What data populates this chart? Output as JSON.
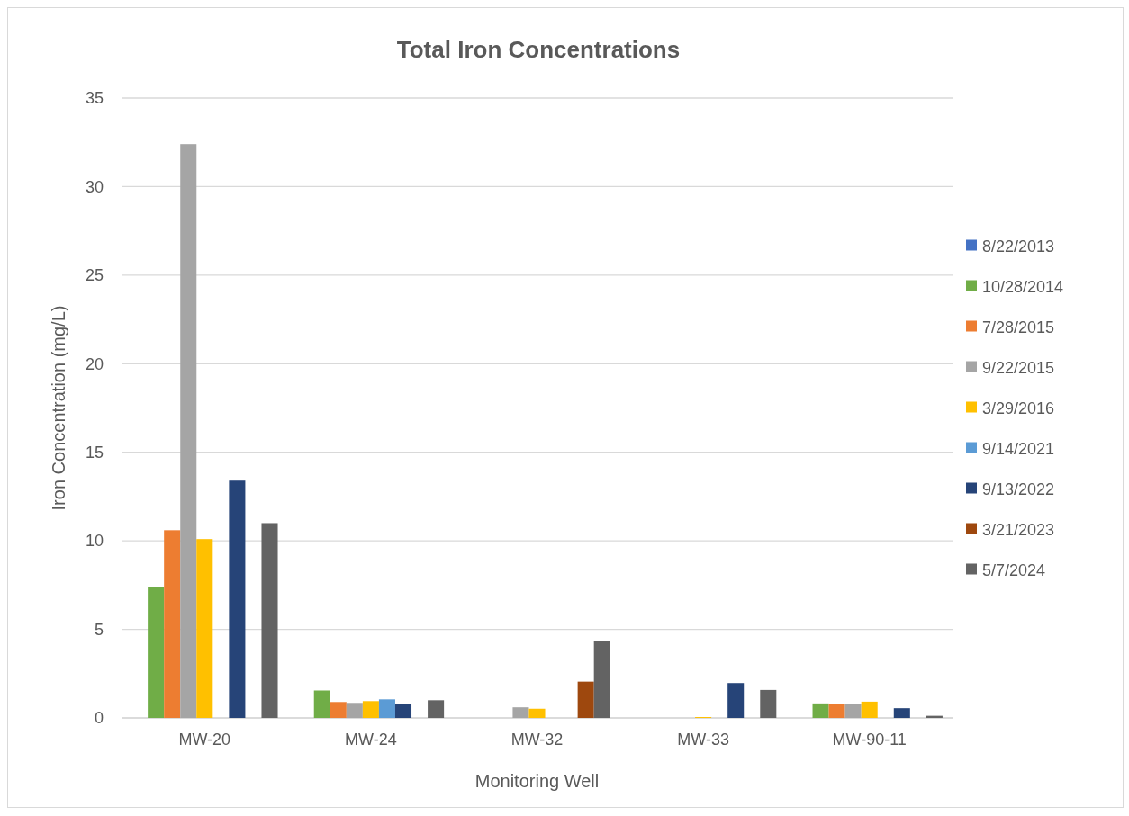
{
  "chart_data": {
    "type": "bar",
    "title": "Total Iron Concentrations",
    "xlabel": "Monitoring Well",
    "ylabel": "Iron Concentration (mg/L)",
    "categories": [
      "MW-20",
      "MW-24",
      "MW-32",
      "MW-33",
      "MW-90-11"
    ],
    "series": [
      {
        "name": "8/22/2013",
        "color": "#4472c4",
        "values": [
          null,
          null,
          null,
          null,
          null
        ]
      },
      {
        "name": "10/28/2014",
        "color": "#70ad47",
        "values": [
          7.4,
          1.55,
          null,
          null,
          0.82
        ]
      },
      {
        "name": "7/28/2015",
        "color": "#ed7d31",
        "values": [
          10.6,
          0.9,
          null,
          null,
          0.78
        ]
      },
      {
        "name": "9/22/2015",
        "color": "#a5a5a5",
        "values": [
          32.4,
          0.85,
          0.6,
          null,
          0.8
        ]
      },
      {
        "name": "3/29/2016",
        "color": "#ffc000",
        "values": [
          10.1,
          0.95,
          0.52,
          0.05,
          0.92
        ]
      },
      {
        "name": "9/14/2021",
        "color": "#5b9bd5",
        "values": [
          null,
          1.05,
          null,
          null,
          null
        ]
      },
      {
        "name": "9/13/2022",
        "color": "#264478",
        "values": [
          13.4,
          0.8,
          null,
          1.97,
          0.55
        ]
      },
      {
        "name": "3/21/2023",
        "color": "#9e480e",
        "values": [
          null,
          null,
          2.05,
          null,
          null
        ]
      },
      {
        "name": "5/7/2024",
        "color": "#636363",
        "values": [
          11.0,
          1.0,
          4.35,
          1.58,
          0.12
        ]
      }
    ],
    "ylim": [
      0,
      35
    ],
    "yticks": [
      0,
      5,
      10,
      15,
      20,
      25,
      30,
      35
    ],
    "grid": "y",
    "legend": "right"
  }
}
